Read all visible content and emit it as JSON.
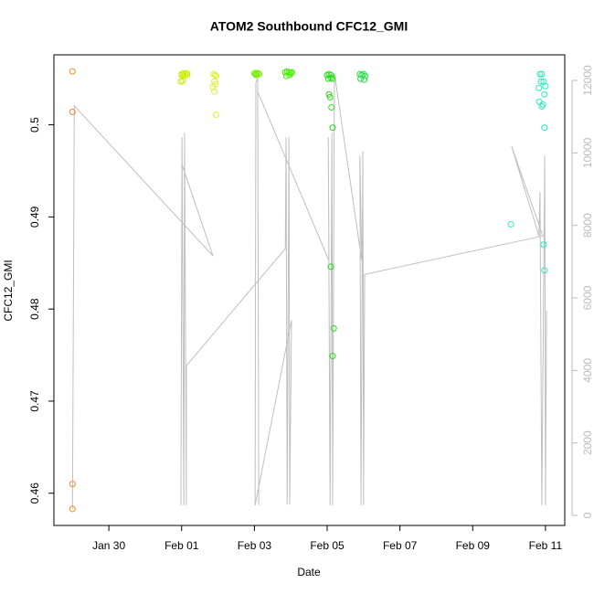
{
  "chart_data": {
    "type": "scatter",
    "title": "ATOM2 Southbound CFC12_GMI",
    "x_label": "Date",
    "y_label": "CFC12_GMI",
    "xlim": [
      28.49,
      42.53
    ],
    "ylim": [
      0.4565,
      0.5076
    ],
    "y2lim": [
      -277,
      12706
    ],
    "xticks": [
      {
        "value": 30,
        "label": "Jan 30"
      },
      {
        "value": 32,
        "label": "Feb 01"
      },
      {
        "value": 34,
        "label": "Feb 03"
      },
      {
        "value": 36,
        "label": "Feb 05"
      },
      {
        "value": 38,
        "label": "Feb 07"
      },
      {
        "value": 40,
        "label": "Feb 09"
      },
      {
        "value": 42,
        "label": "Feb 11"
      }
    ],
    "yticks": [
      0.46,
      0.47,
      0.48,
      0.49,
      0.5
    ],
    "y2ticks": [
      0,
      2000,
      4000,
      6000,
      8000,
      10000,
      12000
    ],
    "y2_color": "#bbbbbb",
    "series": [
      {
        "color": "#bfbfbf",
        "type": "line",
        "axis": "y2",
        "x": [
          29.0,
          29.05,
          32.86,
          32.01,
          31.98,
          32.01,
          32.06,
          32.08,
          32.13,
          32.13,
          34.85,
          34.87,
          34.9,
          34.95,
          34.97,
          35.02,
          34.02,
          34.04,
          34.09,
          34.12,
          34.09,
          36.05,
          36.03,
          36.08,
          36.13,
          36.15,
          36.2,
          36.95,
          36.9,
          36.93,
          36.98,
          37.0,
          37.03,
          41.93,
          41.07,
          41.82,
          41.85,
          41.9,
          41.98,
          42.0,
          42.03
        ],
        "values": [
          180,
          11300,
          7160,
          9680,
          280,
          10430,
          280,
          10560,
          280,
          4130,
          7360,
          10430,
          300,
          10430,
          300,
          5390,
          280,
          11945,
          12070,
          280,
          11690,
          7030,
          10430,
          280,
          10560,
          280,
          12200,
          7030,
          9930,
          280,
          10050,
          280,
          6650,
          7710,
          10180,
          7710,
          8920,
          280,
          9930,
          280,
          5650
        ]
      },
      {
        "color": "#f28c28",
        "x": [
          29.0,
          29.0,
          29.0,
          29.0
        ],
        "values": [
          0.5058,
          0.5014,
          0.461,
          0.4583
        ]
      },
      {
        "color": "#ccee00",
        "x": [
          32.0,
          32.05,
          32.1,
          32.15,
          32.0,
          32.05,
          32.1,
          32.15,
          31.98,
          32.03
        ],
        "values": [
          0.5055,
          0.5056,
          0.5055,
          0.5056,
          0.5054,
          0.5053,
          0.5055,
          0.5054,
          0.5047,
          0.5048
        ]
      },
      {
        "color": "#dfee30",
        "x": [
          32.88,
          32.92,
          32.95,
          32.9,
          32.93,
          32.86,
          32.9,
          32.95
        ],
        "values": [
          0.5055,
          0.5054,
          0.5053,
          0.5047,
          0.5044,
          0.5041,
          0.5036,
          0.5011
        ]
      },
      {
        "color": "#77ee00",
        "x": [
          34.0,
          34.03,
          34.06,
          34.1,
          34.13,
          34.05
        ],
        "values": [
          0.5056,
          0.5055,
          0.5056,
          0.5056,
          0.5055,
          0.5054
        ]
      },
      {
        "color": "#44ee00",
        "x": [
          34.85,
          34.9,
          34.95,
          35.0,
          35.03,
          34.88,
          34.97
        ],
        "values": [
          0.5057,
          0.5058,
          0.5057,
          0.5056,
          0.5057,
          0.5053,
          0.5054
        ]
      },
      {
        "color": "#22dd11",
        "x": [
          36.0,
          36.05,
          36.1,
          36.15,
          36.03,
          36.1,
          36.05,
          36.08,
          36.12,
          36.15,
          36.1,
          36.18,
          36.15
        ],
        "values": [
          0.5054,
          0.5055,
          0.5054,
          0.505,
          0.505,
          0.5051,
          0.5033,
          0.503,
          0.5019,
          0.4997,
          0.4846,
          0.4779,
          0.4749
        ]
      },
      {
        "color": "#22dd44",
        "x": [
          36.9,
          36.95,
          37.0,
          37.05,
          36.92,
          37.02
        ],
        "values": [
          0.5055,
          0.5054,
          0.5055,
          0.5053,
          0.505,
          0.5049
        ]
      },
      {
        "color": "#22eebb",
        "x": [
          41.05,
          41.85,
          41.9,
          41.95,
          42.0,
          41.82,
          41.88,
          41.97,
          41.83,
          41.9,
          41.93,
          41.97,
          41.95,
          41.97
        ],
        "values": [
          0.4892,
          0.5055,
          0.5055,
          0.5047,
          0.5042,
          0.504,
          0.5047,
          0.5033,
          0.5025,
          0.502,
          0.5022,
          0.4997,
          0.487,
          0.4842
        ]
      }
    ]
  }
}
